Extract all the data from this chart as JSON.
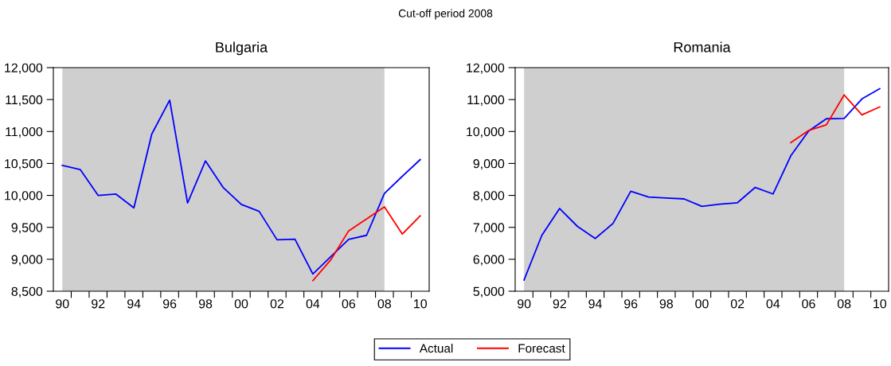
{
  "chart_data": [
    {
      "type": "line",
      "title": "Bulgaria",
      "annotations": [
        "Cut-off period 2008"
      ],
      "x": [
        1990,
        1991,
        1992,
        1993,
        1994,
        1995,
        1996,
        1997,
        1998,
        1999,
        2000,
        2001,
        2002,
        2003,
        2004,
        2005,
        2006,
        2007,
        2008,
        2009,
        2010
      ],
      "series": [
        {
          "name": "Actual",
          "color": "#0000ff",
          "values": [
            10470,
            10405,
            10000,
            10020,
            9805,
            10960,
            11490,
            9880,
            10540,
            10120,
            9860,
            9750,
            9305,
            9315,
            8770,
            9040,
            9310,
            9375,
            10030,
            10300,
            10560
          ]
        },
        {
          "name": "Forecast",
          "color": "#ff0000",
          "values": [
            null,
            null,
            null,
            null,
            null,
            null,
            null,
            null,
            null,
            null,
            null,
            null,
            null,
            null,
            8665,
            8990,
            9445,
            9630,
            9820,
            9395,
            9680
          ]
        }
      ],
      "xlim": [
        1989.5,
        2010.5
      ],
      "xticks": [
        {
          "value": 1990,
          "label": "90"
        },
        {
          "value": 1990.5,
          "label": null
        },
        {
          "value": 1991.5,
          "label": null
        },
        {
          "value": 1992,
          "label": "92"
        },
        {
          "value": 1992.5,
          "label": null
        },
        {
          "value": 1993.5,
          "label": null
        },
        {
          "value": 1994,
          "label": "94"
        },
        {
          "value": 1994.5,
          "label": null
        },
        {
          "value": 1995.5,
          "label": null
        },
        {
          "value": 1996,
          "label": "96"
        },
        {
          "value": 1996.5,
          "label": null
        },
        {
          "value": 1997.5,
          "label": null
        },
        {
          "value": 1998,
          "label": "98"
        },
        {
          "value": 1998.5,
          "label": null
        },
        {
          "value": 1999.5,
          "label": null
        },
        {
          "value": 2000,
          "label": "00"
        },
        {
          "value": 2000.5,
          "label": null
        },
        {
          "value": 2001.5,
          "label": null
        },
        {
          "value": 2002,
          "label": "02"
        },
        {
          "value": 2002.5,
          "label": null
        },
        {
          "value": 2003.5,
          "label": null
        },
        {
          "value": 2004,
          "label": "04"
        },
        {
          "value": 2004.5,
          "label": null
        },
        {
          "value": 2005.5,
          "label": null
        },
        {
          "value": 2006,
          "label": "06"
        },
        {
          "value": 2006.5,
          "label": null
        },
        {
          "value": 2007.5,
          "label": null
        },
        {
          "value": 2008,
          "label": "08"
        },
        {
          "value": 2008.5,
          "label": null
        },
        {
          "value": 2009.5,
          "label": null
        },
        {
          "value": 2010,
          "label": "10"
        }
      ],
      "ylim": [
        8500,
        12000
      ],
      "yticks": [
        {
          "value": 8500,
          "label": "8,500"
        },
        {
          "value": 9000,
          "label": "9,000"
        },
        {
          "value": 9500,
          "label": "9,500"
        },
        {
          "value": 10000,
          "label": "10,000"
        },
        {
          "value": 10500,
          "label": "10,500"
        },
        {
          "value": 11000,
          "label": "11,000"
        },
        {
          "value": 11500,
          "label": "11,500"
        },
        {
          "value": 12000,
          "label": "12,000"
        }
      ],
      "bands": [
        {
          "axis": "x",
          "from": 1990,
          "to": 2008,
          "color": "#cfcfcf"
        }
      ],
      "legend": "bottom",
      "grid": false
    },
    {
      "type": "line",
      "title": "Romania",
      "x": [
        1990,
        1991,
        1992,
        1993,
        1994,
        1995,
        1996,
        1997,
        1998,
        1999,
        2000,
        2001,
        2002,
        2003,
        2004,
        2005,
        2006,
        2007,
        2008,
        2009,
        2010
      ],
      "series": [
        {
          "name": "Actual",
          "color": "#0000ff",
          "values": [
            5350,
            6750,
            7590,
            7030,
            6650,
            7120,
            8130,
            7950,
            7920,
            7890,
            7655,
            7725,
            7770,
            8250,
            8045,
            9240,
            10015,
            10400,
            10410,
            11020,
            11340
          ]
        },
        {
          "name": "Forecast",
          "color": "#ff0000",
          "values": [
            null,
            null,
            null,
            null,
            null,
            null,
            null,
            null,
            null,
            null,
            null,
            null,
            null,
            null,
            null,
            9650,
            10030,
            10210,
            11145,
            10520,
            10770
          ]
        }
      ],
      "xlim": [
        1989.5,
        2010.5
      ],
      "xticks": [
        {
          "value": 1990,
          "label": "90"
        },
        {
          "value": 1990.5,
          "label": null
        },
        {
          "value": 1991.5,
          "label": null
        },
        {
          "value": 1992,
          "label": "92"
        },
        {
          "value": 1992.5,
          "label": null
        },
        {
          "value": 1993.5,
          "label": null
        },
        {
          "value": 1994,
          "label": "94"
        },
        {
          "value": 1994.5,
          "label": null
        },
        {
          "value": 1995.5,
          "label": null
        },
        {
          "value": 1996,
          "label": "96"
        },
        {
          "value": 1996.5,
          "label": null
        },
        {
          "value": 1997.5,
          "label": null
        },
        {
          "value": 1998,
          "label": "98"
        },
        {
          "value": 1998.5,
          "label": null
        },
        {
          "value": 1999.5,
          "label": null
        },
        {
          "value": 2000,
          "label": "00"
        },
        {
          "value": 2000.5,
          "label": null
        },
        {
          "value": 2001.5,
          "label": null
        },
        {
          "value": 2002,
          "label": "02"
        },
        {
          "value": 2002.5,
          "label": null
        },
        {
          "value": 2003.5,
          "label": null
        },
        {
          "value": 2004,
          "label": "04"
        },
        {
          "value": 2004.5,
          "label": null
        },
        {
          "value": 2005.5,
          "label": null
        },
        {
          "value": 2006,
          "label": "06"
        },
        {
          "value": 2006.5,
          "label": null
        },
        {
          "value": 2007.5,
          "label": null
        },
        {
          "value": 2008,
          "label": "08"
        },
        {
          "value": 2008.5,
          "label": null
        },
        {
          "value": 2009.5,
          "label": null
        },
        {
          "value": 2010,
          "label": "10"
        }
      ],
      "ylim": [
        5000,
        12000
      ],
      "yticks": [
        {
          "value": 5000,
          "label": "5,000"
        },
        {
          "value": 6000,
          "label": "6,000"
        },
        {
          "value": 7000,
          "label": "7,000"
        },
        {
          "value": 8000,
          "label": "8,000"
        },
        {
          "value": 9000,
          "label": "9,000"
        },
        {
          "value": 10000,
          "label": "10,000"
        },
        {
          "value": 11000,
          "label": "11,000"
        },
        {
          "value": 12000,
          "label": "12,000"
        }
      ],
      "bands": [
        {
          "axis": "x",
          "from": 1990,
          "to": 2008,
          "color": "#cfcfcf"
        }
      ],
      "grid": false
    }
  ]
}
